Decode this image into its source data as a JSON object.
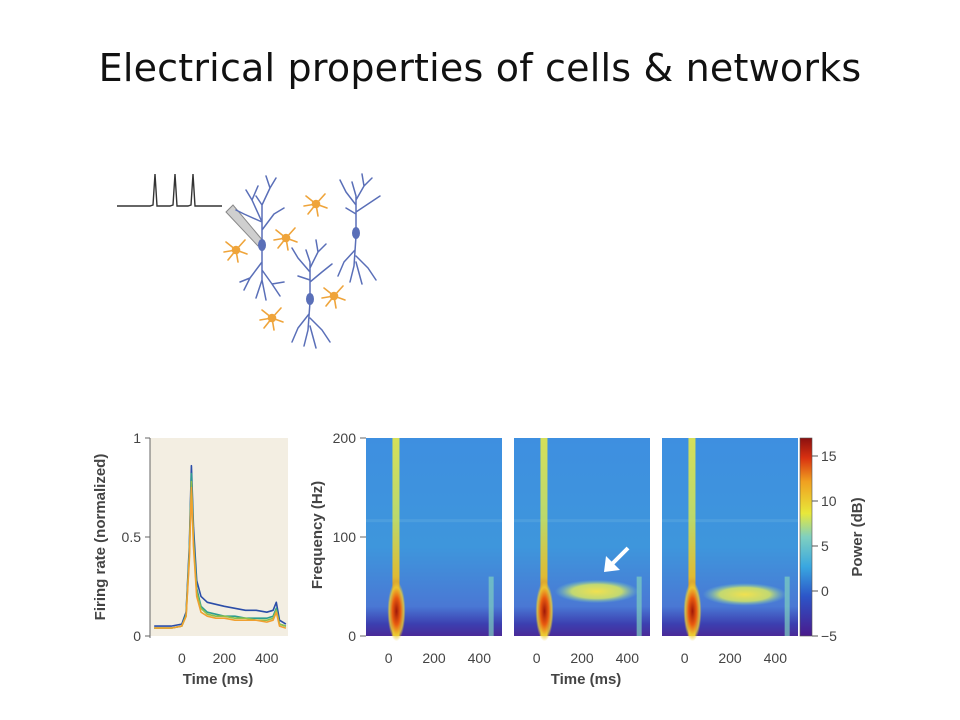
{
  "slide": {
    "title": "Electrical properties of cells & networks"
  },
  "colors": {
    "neuron": "#5a6fb8",
    "glia": "#efa43a",
    "trace": "#333333",
    "panel_bg": "#f3eee2"
  },
  "chart_data": [
    {
      "type": "line",
      "ylabel": "Firing rate (normalized)",
      "xlabel": "Time (ms)",
      "xlim": [
        -150,
        500
      ],
      "ylim": [
        0,
        1
      ],
      "xticks": [
        "0",
        "200",
        "400"
      ],
      "yticks": [
        "0",
        "0.5",
        "1"
      ],
      "x": [
        -130,
        -50,
        0,
        20,
        35,
        45,
        55,
        70,
        90,
        120,
        160,
        200,
        250,
        300,
        350,
        400,
        430,
        445,
        460,
        490
      ],
      "series": [
        {
          "color": "#2b4da8",
          "values": [
            0.05,
            0.05,
            0.06,
            0.12,
            0.45,
            0.86,
            0.55,
            0.28,
            0.2,
            0.17,
            0.16,
            0.15,
            0.14,
            0.13,
            0.13,
            0.12,
            0.13,
            0.17,
            0.08,
            0.06
          ]
        },
        {
          "color": "#2f9e8f",
          "values": [
            0.04,
            0.04,
            0.05,
            0.11,
            0.42,
            0.82,
            0.5,
            0.24,
            0.15,
            0.12,
            0.11,
            0.1,
            0.1,
            0.09,
            0.09,
            0.09,
            0.1,
            0.14,
            0.06,
            0.05
          ]
        },
        {
          "color": "#8fbf4a",
          "values": [
            0.04,
            0.04,
            0.05,
            0.1,
            0.4,
            0.78,
            0.47,
            0.22,
            0.14,
            0.11,
            0.1,
            0.1,
            0.09,
            0.09,
            0.08,
            0.08,
            0.09,
            0.13,
            0.06,
            0.05
          ]
        },
        {
          "color": "#f0a030",
          "values": [
            0.04,
            0.04,
            0.05,
            0.1,
            0.38,
            0.75,
            0.45,
            0.2,
            0.12,
            0.1,
            0.09,
            0.09,
            0.08,
            0.08,
            0.08,
            0.07,
            0.08,
            0.12,
            0.05,
            0.04
          ]
        }
      ]
    },
    {
      "type": "heatmap",
      "ylabel": "Frequency (Hz)",
      "xlabel": "Time (ms)",
      "xlim": [
        -100,
        500
      ],
      "ylim": [
        0,
        200
      ],
      "xticks": [
        "0",
        "200",
        "400"
      ],
      "yticks": [
        "0",
        "100",
        "200"
      ],
      "colorbar": {
        "label": "Power (dB)",
        "ticks": [
          "15",
          "10",
          "5",
          "0",
          "−5"
        ],
        "range": [
          -5,
          17
        ]
      },
      "panels": [
        {
          "gamma_band_hz": null,
          "gamma_power_db": 0
        },
        {
          "gamma_band_hz": 45,
          "gamma_power_db": 9
        },
        {
          "gamma_band_hz": 42,
          "gamma_power_db": 8
        }
      ],
      "annotation": "white-arrow"
    }
  ]
}
